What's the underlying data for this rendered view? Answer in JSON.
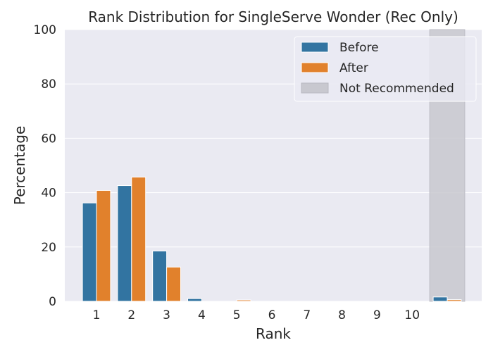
{
  "chart_data": {
    "type": "bar",
    "title": "Rank Distribution for SingleServe Wonder (Rec Only)",
    "xlabel": "Rank",
    "ylabel": "Percentage",
    "ylim": [
      0,
      100
    ],
    "yticks": [
      0,
      20,
      40,
      60,
      80,
      100
    ],
    "categories": [
      "1",
      "2",
      "3",
      "4",
      "5",
      "6",
      "7",
      "8",
      "9",
      "10",
      ""
    ],
    "series": [
      {
        "name": "Before",
        "color": "#3274a1",
        "values": [
          36.2,
          42.6,
          18.5,
          1.0,
          0.0,
          0.0,
          0.0,
          0.0,
          0.0,
          0.0,
          1.6
        ]
      },
      {
        "name": "After",
        "color": "#e1812c",
        "values": [
          40.8,
          45.7,
          12.6,
          0.0,
          0.5,
          0.0,
          0.0,
          0.0,
          0.0,
          0.0,
          0.6
        ]
      }
    ],
    "shaded_region": {
      "label": "Not Recommended",
      "color": "#c8c8cf",
      "category_index": 10
    },
    "legend": {
      "position": "top-right"
    },
    "grid": {
      "y": true,
      "x": false
    },
    "style": {
      "background": "#eaeaf2",
      "grid_color": "#ffffff"
    }
  }
}
